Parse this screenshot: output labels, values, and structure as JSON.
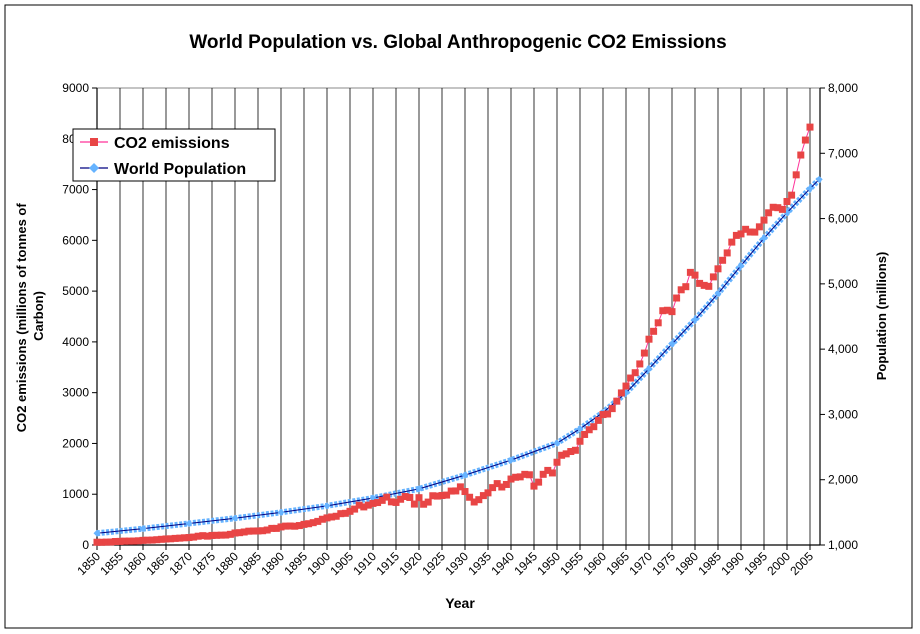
{
  "chart_data": {
    "type": "line",
    "title": "World Population vs. Global Anthropogenic CO2 Emissions",
    "xlabel": "Year",
    "ylabel_left": "CO2 emissions (millions of tonnes of Carbon)",
    "ylabel_right": "Population (millions)",
    "xlim": [
      1850,
      2007
    ],
    "ylim_left": [
      0,
      9000
    ],
    "ylim_right": [
      1000,
      8000
    ],
    "x_ticks": [
      "1850",
      "1855",
      "1860",
      "1865",
      "1870",
      "1875",
      "1880",
      "1885",
      "1890",
      "1895",
      "1900",
      "1905",
      "1910",
      "1915",
      "1920",
      "1925",
      "1930",
      "1935",
      "1940",
      "1945",
      "1950",
      "1955",
      "1960",
      "1965",
      "1970",
      "1975",
      "1980",
      "1985",
      "1990",
      "1995",
      "2000",
      "2005"
    ],
    "y_ticks_left": [
      "0",
      "1000",
      "2000",
      "3000",
      "4000",
      "5000",
      "6000",
      "7000",
      "8000",
      "9000"
    ],
    "y_ticks_right": [
      "1,000",
      "2,000",
      "3,000",
      "4,000",
      "5,000",
      "6,000",
      "7,000",
      "8,000"
    ],
    "grid": "vertical",
    "legend_position": "top-left",
    "series": [
      {
        "name": "CO2 emissions",
        "axis": "left",
        "marker": "square",
        "marker_color": "#e84545",
        "line_color": "#ff3399",
        "x_start": 1850,
        "values": [
          54,
          54,
          57,
          59,
          69,
          71,
          76,
          77,
          78,
          83,
          91,
          95,
          97,
          104,
          112,
          119,
          122,
          130,
          135,
          142,
          147,
          156,
          173,
          184,
          174,
          188,
          191,
          194,
          196,
          210,
          236,
          243,
          256,
          272,
          275,
          277,
          281,
          295,
          327,
          327,
          356,
          372,
          374,
          370,
          383,
          406,
          419,
          440,
          465,
          507,
          534,
          552,
          566,
          617,
          624,
          663,
          707,
          784,
          750,
          785,
          819,
          836,
          879,
          943,
          850,
          838,
          901,
          955,
          936,
          806,
          932,
          803,
          845,
          970,
          963,
          975,
          983,
          1062,
          1065,
          1145,
          1053,
          940,
          847,
          893,
          973,
          1027,
          1130,
          1209,
          1142,
          1192,
          1299,
          1334,
          1342,
          1391,
          1383,
          1160,
          1238,
          1392,
          1469,
          1419,
          1630,
          1767,
          1795,
          1841,
          1865,
          2043,
          2177,
          2270,
          2330,
          2454,
          2569,
          2580,
          2686,
          2833,
          2995,
          3130,
          3288,
          3393,
          3566,
          3780,
          4053,
          4208,
          4376,
          4614,
          4623,
          4596,
          4864,
          5026,
          5087,
          5369,
          5315,
          5152,
          5113,
          5094,
          5280,
          5439,
          5607,
          5752,
          5965,
          6097,
          6127,
          6217,
          6164,
          6162,
          6266,
          6398,
          6542,
          6651,
          6643,
          6610,
          6765,
          6890,
          7290,
          7680,
          7975,
          8230
        ]
      },
      {
        "name": "World Population",
        "axis": "right",
        "marker": "diamond",
        "marker_color": "#66b3ff",
        "line_color": "#000080",
        "x": [
          1850,
          1860,
          1870,
          1880,
          1890,
          1900,
          1910,
          1920,
          1930,
          1940,
          1950,
          1955,
          1960,
          1965,
          1970,
          1975,
          1980,
          1985,
          1990,
          1995,
          2000,
          2005,
          2007
        ],
        "values": [
          1180,
          1250,
          1330,
          1410,
          1500,
          1600,
          1720,
          1860,
          2070,
          2300,
          2560,
          2780,
          3030,
          3330,
          3700,
          4080,
          4450,
          4850,
          5280,
          5700,
          6090,
          6460,
          6600
        ]
      }
    ]
  }
}
